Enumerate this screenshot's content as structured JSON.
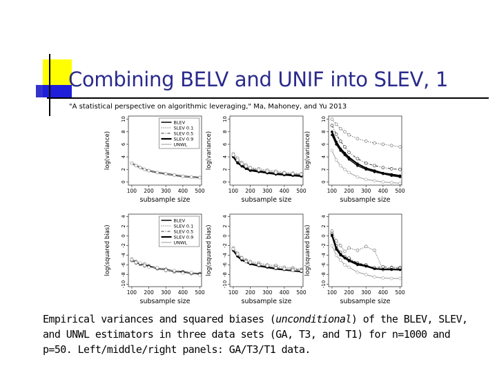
{
  "slide": {
    "title": "Combining BELV and UNIF into SLEV, 1",
    "citation": "\"A statistical perspective on algorithmic leveraging,\" Ma, Mahoney, and Yu 2013",
    "caption": {
      "part1": "Empirical variances and squared biases (",
      "italic": "unconditional",
      "part2": ") of the BLEV, SLEV, and UNWL estimators in three data sets (GA, T3, and T1) for n=1000 and p=50. Left/middle/right panels: GA/T3/T1 data."
    }
  },
  "colors": {
    "title": "#2a2a8c",
    "accent_yellow": "#ffff00",
    "accent_blue": "#3333cc"
  },
  "chart_data": [
    {
      "id": "var-ga",
      "type": "line",
      "xlabel": "subsample size",
      "ylabel": "log(variance)",
      "xticks": [
        100,
        200,
        300,
        400,
        500
      ],
      "yticks": [
        0,
        2,
        4,
        6,
        8,
        10
      ],
      "ylim": [
        -0.5,
        10.5
      ],
      "xlim": [
        80,
        510
      ],
      "legend": [
        "BLEV",
        "SLEV 0.1",
        "SLEV 0.5",
        "SLEV 0.9",
        "UNWL"
      ],
      "x": [
        100,
        125,
        150,
        175,
        200,
        250,
        300,
        350,
        400,
        450,
        500
      ],
      "series": [
        {
          "name": "BLEV",
          "values": [
            3.0,
            2.6,
            2.3,
            2.0,
            1.8,
            1.5,
            1.3,
            1.1,
            0.9,
            0.8,
            0.7
          ]
        },
        {
          "name": "SLEV 0.1",
          "values": [
            3.0,
            2.6,
            2.3,
            2.0,
            1.8,
            1.5,
            1.3,
            1.1,
            0.9,
            0.8,
            0.7
          ]
        },
        {
          "name": "SLEV 0.5",
          "values": [
            3.0,
            2.6,
            2.3,
            2.0,
            1.8,
            1.5,
            1.3,
            1.1,
            0.9,
            0.8,
            0.7
          ]
        },
        {
          "name": "SLEV 0.9",
          "values": [
            3.0,
            2.6,
            2.3,
            2.0,
            1.8,
            1.5,
            1.3,
            1.1,
            0.9,
            0.8,
            0.7
          ]
        },
        {
          "name": "UNWL",
          "values": [
            3.0,
            2.6,
            2.3,
            2.0,
            1.8,
            1.5,
            1.3,
            1.1,
            0.9,
            0.8,
            0.7
          ]
        }
      ]
    },
    {
      "id": "var-t3",
      "type": "line",
      "xlabel": "subsample size",
      "ylabel": "log(variance)",
      "xticks": [
        100,
        200,
        300,
        400,
        500
      ],
      "yticks": [
        0,
        2,
        4,
        6,
        8,
        10
      ],
      "ylim": [
        -0.5,
        10.5
      ],
      "xlim": [
        80,
        510
      ],
      "x": [
        100,
        125,
        150,
        175,
        200,
        250,
        300,
        350,
        400,
        450,
        500
      ],
      "series": [
        {
          "name": "BLEV",
          "values": [
            4.0,
            3.0,
            2.5,
            2.1,
            1.8,
            1.6,
            1.4,
            1.2,
            1.1,
            1.0,
            0.9
          ]
        },
        {
          "name": "SLEV 0.1",
          "values": [
            4.5,
            3.8,
            3.1,
            2.7,
            2.3,
            2.1,
            1.9,
            1.7,
            1.5,
            1.4,
            1.3
          ]
        },
        {
          "name": "SLEV 0.5",
          "values": [
            4.2,
            3.4,
            2.8,
            2.4,
            2.1,
            1.8,
            1.6,
            1.4,
            1.3,
            1.2,
            1.1
          ]
        },
        {
          "name": "SLEV 0.9",
          "values": [
            4.0,
            3.1,
            2.6,
            2.2,
            1.9,
            1.7,
            1.5,
            1.3,
            1.2,
            1.1,
            1.0
          ]
        },
        {
          "name": "UNWL",
          "values": [
            4.3,
            3.5,
            2.9,
            2.5,
            2.2,
            1.9,
            1.7,
            1.5,
            1.4,
            1.3,
            1.2
          ]
        }
      ]
    },
    {
      "id": "var-t1",
      "type": "line",
      "xlabel": "subsample size",
      "ylabel": "log(variance)",
      "xticks": [
        100,
        200,
        300,
        400,
        500
      ],
      "yticks": [
        0,
        2,
        4,
        6,
        8,
        10
      ],
      "ylim": [
        -0.5,
        10.5
      ],
      "xlim": [
        80,
        510
      ],
      "x": [
        100,
        125,
        150,
        175,
        200,
        250,
        300,
        350,
        400,
        450,
        500
      ],
      "series": [
        {
          "name": "BLEV",
          "values": [
            7.5,
            6.0,
            5.0,
            4.3,
            3.6,
            2.6,
            2.0,
            1.6,
            1.3,
            1.0,
            0.8
          ]
        },
        {
          "name": "SLEV 0.1",
          "values": [
            10.0,
            9.2,
            8.5,
            8.0,
            7.5,
            6.9,
            6.5,
            6.2,
            6.0,
            5.8,
            5.6
          ]
        },
        {
          "name": "SLEV 0.5",
          "values": [
            9.0,
            7.6,
            6.5,
            5.6,
            4.7,
            3.7,
            3.0,
            2.6,
            2.3,
            2.1,
            2.0
          ]
        },
        {
          "name": "SLEV 0.9",
          "values": [
            8.0,
            6.4,
            5.3,
            4.6,
            3.9,
            2.9,
            2.2,
            1.8,
            1.4,
            1.2,
            1.0
          ]
        },
        {
          "name": "UNWL",
          "values": [
            5.0,
            3.5,
            2.6,
            2.0,
            1.5,
            0.8,
            0.4,
            0.2,
            0.0,
            -0.1,
            -0.2
          ]
        }
      ]
    },
    {
      "id": "bias-ga",
      "type": "line",
      "xlabel": "subsample size",
      "ylabel": "log(squared bias)",
      "xticks": [
        100,
        200,
        300,
        400,
        500
      ],
      "yticks": [
        -10,
        -8,
        -6,
        -4,
        -2,
        0,
        2,
        4
      ],
      "ylim": [
        -10.5,
        4.5
      ],
      "xlim": [
        80,
        510
      ],
      "legend": [
        "BLEV",
        "SLEV 0.1",
        "SLEV 0.5",
        "SLEV 0.9",
        "UNWL"
      ],
      "x": [
        100,
        125,
        150,
        175,
        200,
        250,
        300,
        350,
        400,
        450,
        500
      ],
      "series": [
        {
          "name": "BLEV",
          "values": [
            -5.0,
            -5.4,
            -5.8,
            -6.0,
            -6.3,
            -6.7,
            -7.0,
            -7.3,
            -7.5,
            -7.7,
            -7.9
          ]
        },
        {
          "name": "SLEV 0.1",
          "values": [
            -4.8,
            -5.3,
            -5.9,
            -5.8,
            -6.4,
            -6.6,
            -7.2,
            -7.2,
            -7.6,
            -7.6,
            -8.0
          ]
        },
        {
          "name": "SLEV 0.5",
          "values": [
            -5.1,
            -5.6,
            -5.7,
            -6.2,
            -6.2,
            -6.8,
            -6.9,
            -7.4,
            -7.4,
            -7.8,
            -7.8
          ]
        },
        {
          "name": "SLEV 0.9",
          "values": [
            -5.0,
            -5.4,
            -5.8,
            -6.0,
            -6.3,
            -6.7,
            -7.0,
            -7.3,
            -7.5,
            -7.7,
            -7.9
          ]
        },
        {
          "name": "UNWL",
          "values": [
            -4.9,
            -5.5,
            -5.6,
            -6.1,
            -6.5,
            -6.6,
            -7.1,
            -7.2,
            -7.7,
            -7.6,
            -8.1
          ]
        }
      ]
    },
    {
      "id": "bias-t3",
      "type": "line",
      "xlabel": "subsample size",
      "ylabel": "log(squared bias)",
      "xticks": [
        100,
        200,
        300,
        400,
        500
      ],
      "yticks": [
        -10,
        -8,
        -6,
        -4,
        -2,
        0,
        2,
        4
      ],
      "ylim": [
        -10.5,
        4.5
      ],
      "xlim": [
        80,
        510
      ],
      "x": [
        100,
        125,
        150,
        175,
        200,
        250,
        300,
        350,
        400,
        450,
        500
      ],
      "series": [
        {
          "name": "BLEV",
          "values": [
            -3.0,
            -4.2,
            -5.0,
            -5.4,
            -5.8,
            -6.2,
            -6.5,
            -6.8,
            -7.0,
            -7.2,
            -7.4
          ]
        },
        {
          "name": "SLEV 0.1",
          "values": [
            -2.5,
            -3.6,
            -4.5,
            -5.0,
            -5.3,
            -5.6,
            -6.0,
            -6.1,
            -6.5,
            -6.6,
            -6.9
          ]
        },
        {
          "name": "SLEV 0.5",
          "values": [
            -2.8,
            -4.0,
            -4.8,
            -5.2,
            -5.6,
            -5.9,
            -6.3,
            -6.5,
            -6.8,
            -6.9,
            -7.1
          ]
        },
        {
          "name": "SLEV 0.9",
          "values": [
            -3.0,
            -4.2,
            -5.0,
            -5.4,
            -5.8,
            -6.2,
            -6.5,
            -6.8,
            -7.0,
            -7.2,
            -7.4
          ]
        },
        {
          "name": "UNWL",
          "values": [
            -2.7,
            -3.8,
            -4.6,
            -5.3,
            -5.5,
            -6.0,
            -6.2,
            -6.6,
            -6.8,
            -7.1,
            -7.2
          ]
        }
      ]
    },
    {
      "id": "bias-t1",
      "type": "line",
      "xlabel": "subsample size",
      "ylabel": "log(squared bias)",
      "xticks": [
        100,
        200,
        300,
        400,
        500
      ],
      "yticks": [
        -10,
        -8,
        -6,
        -4,
        -2,
        0,
        2,
        4
      ],
      "ylim": [
        -10.5,
        4.5
      ],
      "xlim": [
        80,
        510
      ],
      "x": [
        100,
        125,
        150,
        175,
        200,
        250,
        300,
        350,
        400,
        450,
        500
      ],
      "series": [
        {
          "name": "BLEV",
          "values": [
            0.0,
            -2.8,
            -4.0,
            -4.6,
            -5.2,
            -6.0,
            -6.3,
            -6.8,
            -7.0,
            -7.0,
            -7.0
          ]
        },
        {
          "name": "SLEV 0.1",
          "values": [
            1.0,
            -1.0,
            -2.0,
            -3.2,
            -2.5,
            -3.0,
            -2.2,
            -3.0,
            -7.0,
            -6.5,
            -6.5
          ]
        },
        {
          "name": "SLEV 0.5",
          "values": [
            0.5,
            -2.0,
            -3.4,
            -4.3,
            -4.6,
            -5.6,
            -6.0,
            -6.6,
            -6.4,
            -6.6,
            -6.7
          ]
        },
        {
          "name": "SLEV 0.9",
          "values": [
            0.2,
            -2.5,
            -3.8,
            -4.5,
            -5.0,
            -5.8,
            -6.2,
            -6.8,
            -6.9,
            -6.9,
            -7.0
          ]
        },
        {
          "name": "UNWL",
          "values": [
            -2.0,
            -4.0,
            -5.0,
            -6.0,
            -6.5,
            -7.5,
            -8.0,
            -8.5,
            -8.7,
            -8.8,
            -8.8
          ]
        }
      ]
    }
  ]
}
